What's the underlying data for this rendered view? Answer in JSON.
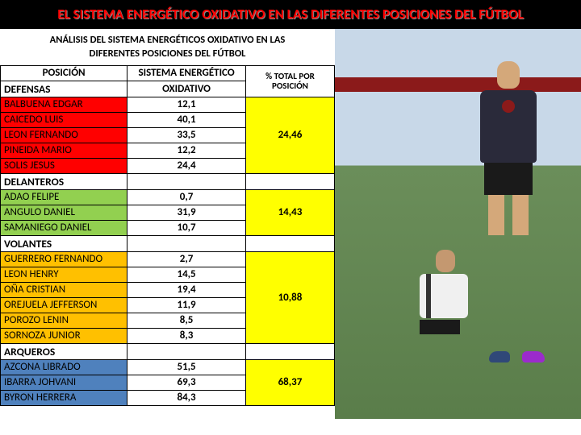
{
  "header": "EL SISTEMA ENERGÉTICO OXIDATIVO  EN LAS DIFERENTES POSICIONES DEL  FÚTBOL",
  "subtitle_line1": "ANÁLISIS DEL SISTEMA ENERGÉTICOS OXIDATIVO EN LAS",
  "subtitle_line2": "DIFERENTES POSICIONES DEL FÚTBOL",
  "columns": {
    "pos": "POSICIÓN",
    "sys": "SISTEMA ENERGÉTICO",
    "pct": "% TOTAL POR POSICIÓN"
  },
  "colors": {
    "defensas": "#ff0000",
    "delanteros": "#92d050",
    "volantes": "#ffc000",
    "arqueros": "#4f81bd",
    "pct_bg": "#ffff00"
  },
  "sections": [
    {
      "title": "DEFENSAS",
      "marker": "OXIDATIVO",
      "pct": "24,46",
      "class": "red",
      "rows": [
        {
          "name": "BALBUENA EDGAR",
          "val": "12,1"
        },
        {
          "name": "CAICEDO LUIS",
          "val": "40,1"
        },
        {
          "name": "LEON FERNANDO",
          "val": "33,5"
        },
        {
          "name": "PINEIDA MARIO",
          "val": "12,2"
        },
        {
          "name": "SOLIS JESUS",
          "val": "24,4"
        }
      ]
    },
    {
      "title": "DELANTEROS",
      "pct": "14,43",
      "class": "green",
      "rows": [
        {
          "name": "ADAO FELIPE",
          "val": "0,7"
        },
        {
          "name": "ANGULO DANIEL",
          "val": "31,9"
        },
        {
          "name": "SAMANIEGO DANIEL",
          "val": "10,7"
        }
      ]
    },
    {
      "title": "VOLANTES",
      "pct": "10,88",
      "class": "orange",
      "rows": [
        {
          "name": "GUERRERO FERNANDO",
          "val": "2,7"
        },
        {
          "name": "LEON HENRY",
          "val": "14,5"
        },
        {
          "name": "OÑA CRISTIAN",
          "val": "19,4"
        },
        {
          "name": "OREJUELA JEFFERSON",
          "val": "11,9"
        },
        {
          "name": "POROZO LENIN",
          "val": "8,5"
        },
        {
          "name": "SORNOZA JUNIOR",
          "val": "8,3"
        }
      ]
    },
    {
      "title": "ARQUEROS",
      "pct": "68,37",
      "class": "blue",
      "rows": [
        {
          "name": "AZCONA LIBRADO",
          "val": "51,5"
        },
        {
          "name": "IBARRA JOHVANI",
          "val": "69,3"
        },
        {
          "name": "BYRON HERRERA",
          "val": "84,3"
        }
      ]
    }
  ]
}
